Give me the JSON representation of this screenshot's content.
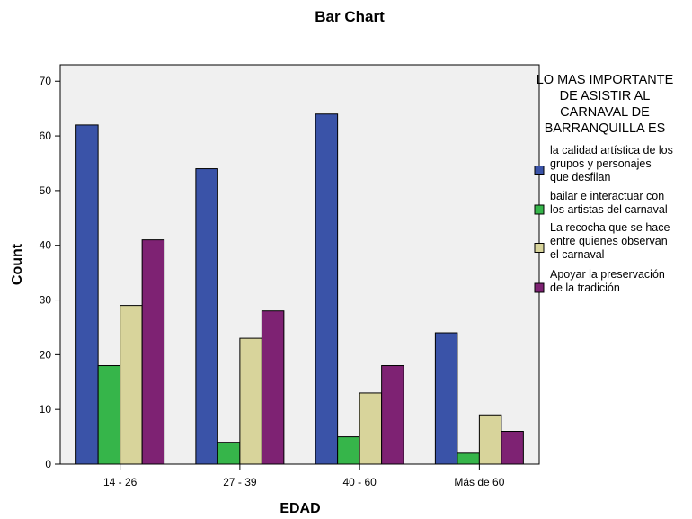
{
  "chart_data": {
    "type": "bar",
    "title": "Bar Chart",
    "xlabel": "EDAD",
    "ylabel": "Count",
    "categories": [
      "14 - 26",
      "27 - 39",
      "40 - 60",
      "Más de 60"
    ],
    "ylim": [
      0,
      73
    ],
    "yticks": [
      0,
      10,
      20,
      30,
      40,
      50,
      60,
      70
    ],
    "grid": false,
    "legend_position": "right",
    "legend_title": [
      "LO MAS IMPORTANTE",
      "DE ASISTIR AL",
      "CARNAVAL DE",
      "BARRANQUILLA ES"
    ],
    "series": [
      {
        "name": "la calidad artística de los grupos y personajes que desfilan",
        "legend_lines": [
          "la calidad artística de los",
          "grupos y personajes",
          "que desfilan"
        ],
        "color": "#3a53a8",
        "values": [
          62,
          54,
          64,
          24
        ]
      },
      {
        "name": "bailar e interactuar con los artistas del carnaval",
        "legend_lines": [
          "bailar e interactuar con",
          "los artistas del carnaval"
        ],
        "color": "#36b54a",
        "values": [
          18,
          4,
          5,
          2
        ]
      },
      {
        "name": "La recocha que se hace entre quienes observan el carnaval",
        "legend_lines": [
          "La recocha que se hace",
          "entre quienes observan",
          "el carnaval"
        ],
        "color": "#d8d49b",
        "values": [
          29,
          23,
          13,
          9
        ]
      },
      {
        "name": "Apoyar la preservación de la tradición",
        "legend_lines": [
          "Apoyar la preservación",
          "de la tradición"
        ],
        "color": "#7e2273",
        "values": [
          41,
          28,
          18,
          6
        ]
      }
    ],
    "plot_background": "#f0f0f0"
  }
}
